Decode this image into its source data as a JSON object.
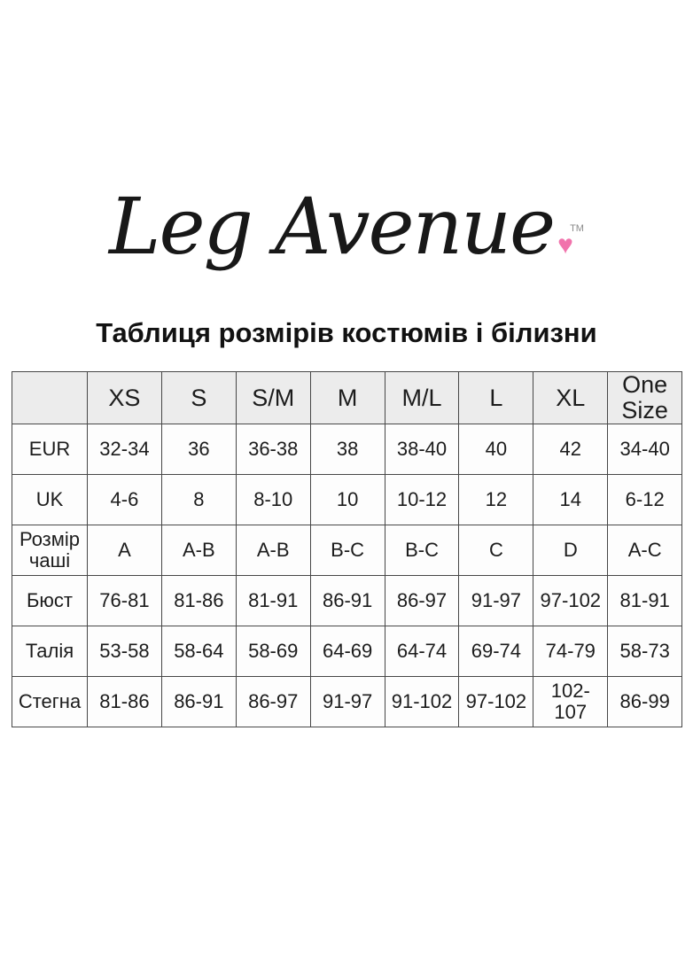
{
  "logo": {
    "brand": "Leg Avenue",
    "trademark": "TM",
    "heart": "♥",
    "heart_color": "#f173ac"
  },
  "title": "Таблиця розмірів костюмів і білизни",
  "size_table": {
    "columns": [
      "",
      "XS",
      "S",
      "S/M",
      "M",
      "M/L",
      "L",
      "XL",
      "One Size"
    ],
    "rows": [
      {
        "label": "EUR",
        "values": [
          "32-34",
          "36",
          "36-38",
          "38",
          "38-40",
          "40",
          "42",
          "34-40"
        ]
      },
      {
        "label": "UK",
        "values": [
          "4-6",
          "8",
          "8-10",
          "10",
          "10-12",
          "12",
          "14",
          "6-12"
        ]
      },
      {
        "label": "Розмір чаші",
        "values": [
          "A",
          "A-B",
          "A-B",
          "B-C",
          "B-C",
          "C",
          "D",
          "A-C"
        ]
      },
      {
        "label": "Бюст",
        "values": [
          "76-81",
          "81-86",
          "81-91",
          "86-91",
          "86-97",
          "91-97",
          "97-102",
          "81-91"
        ]
      },
      {
        "label": "Талія",
        "values": [
          "53-58",
          "58-64",
          "58-69",
          "64-69",
          "64-74",
          "69-74",
          "74-79",
          "58-73"
        ]
      },
      {
        "label": "Стегна",
        "values": [
          "81-86",
          "86-91",
          "86-97",
          "91-97",
          "91-102",
          "97-102",
          "102-107",
          "86-99"
        ]
      }
    ]
  }
}
